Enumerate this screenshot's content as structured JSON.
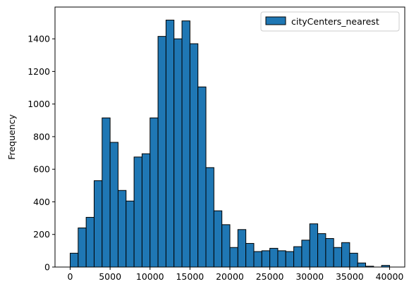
{
  "chart_data": {
    "type": "bar",
    "subtype": "histogram",
    "title": "",
    "xlabel": "",
    "ylabel": "Frequency",
    "xlim": [
      -1900,
      41900
    ],
    "ylim": [
      0,
      1595
    ],
    "x_ticks": [
      0,
      5000,
      10000,
      15000,
      20000,
      25000,
      30000,
      35000,
      40000
    ],
    "y_ticks": [
      0,
      200,
      400,
      600,
      800,
      1000,
      1200,
      1400
    ],
    "bin_start": 0,
    "bin_width": 1000,
    "legend": {
      "position": "top-right",
      "entries": [
        "cityCenters_nearest"
      ]
    },
    "grid": false,
    "series": [
      {
        "name": "cityCenters_nearest",
        "color": "#1f77b4",
        "edge_color": "#000000",
        "values": [
          85,
          240,
          305,
          530,
          915,
          765,
          470,
          405,
          675,
          695,
          915,
          1415,
          1515,
          1400,
          1510,
          1370,
          1105,
          610,
          345,
          260,
          120,
          230,
          145,
          95,
          100,
          115,
          100,
          95,
          125,
          165,
          265,
          205,
          175,
          120,
          150,
          85,
          25,
          5,
          0,
          10
        ]
      }
    ]
  }
}
